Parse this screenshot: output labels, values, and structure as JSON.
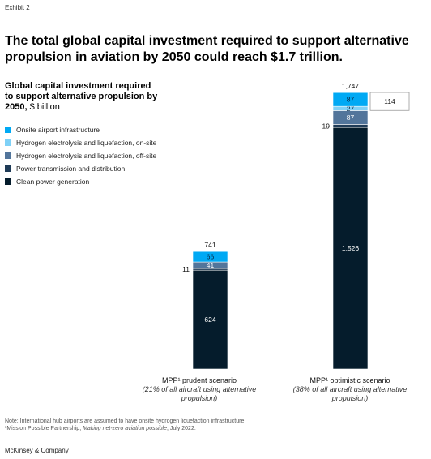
{
  "exhibit_label": "Exhibit 2",
  "headline": "The total global capital investment required to support alternative propulsion in aviation by 2050 could reach $1.7 trillion.",
  "subtitle_bold": "Global capital investment required to support alternative propulsion by 2050,",
  "subtitle_unit": " $ billion",
  "note": "Note: International hub airports are assumed to have onsite hydrogen liquefaction infrastructure.",
  "footnote_prefix": "¹Mission Possible Partnership, ",
  "footnote_title": "Making net-zero aviation possible",
  "footnote_suffix": ", July 2022.",
  "brand": "McKinsey & Company",
  "chart_data": {
    "type": "bar",
    "stacked": true,
    "categories": [
      "MPP¹ prudent scenario",
      "MPP¹ optimistic scenario"
    ],
    "category_notes": [
      "(21% of all aircraft using alternative propulsion)",
      "(38% of all aircraft using alternative propulsion)"
    ],
    "totals": [
      741,
      1747
    ],
    "series": [
      {
        "name": "Clean power generation",
        "color": "#051c2c",
        "values": [
          624,
          1526
        ],
        "labels": [
          "624",
          "1,526"
        ]
      },
      {
        "name": "Power transmission and distribution",
        "color": "#1f3b57",
        "values": [
          11,
          19
        ],
        "labels": [
          "11",
          "19"
        ]
      },
      {
        "name": "Hydrogen electrolysis and liquefaction, off-site",
        "color": "#52759b",
        "values": [
          41,
          87
        ],
        "labels": [
          "41",
          "87"
        ]
      },
      {
        "name": "Hydrogen electrolysis and liquefaction, on-site",
        "color": "#7fd1f7",
        "values": [
          0,
          27
        ],
        "labels": [
          "",
          "27"
        ]
      },
      {
        "name": "Onsite airport infrastructure",
        "color": "#00a9f4",
        "values": [
          66,
          87
        ],
        "labels": [
          "66",
          "87"
        ]
      }
    ],
    "legend_order": [
      "Onsite airport infrastructure",
      "Hydrogen electrolysis and liquefaction, on-site",
      "Hydrogen electrolysis and liquefaction, off-site",
      "Power transmission and distribution",
      "Clean power generation"
    ],
    "callout": {
      "value": "114",
      "category": 1
    },
    "ylim": [
      0,
      1747
    ]
  }
}
